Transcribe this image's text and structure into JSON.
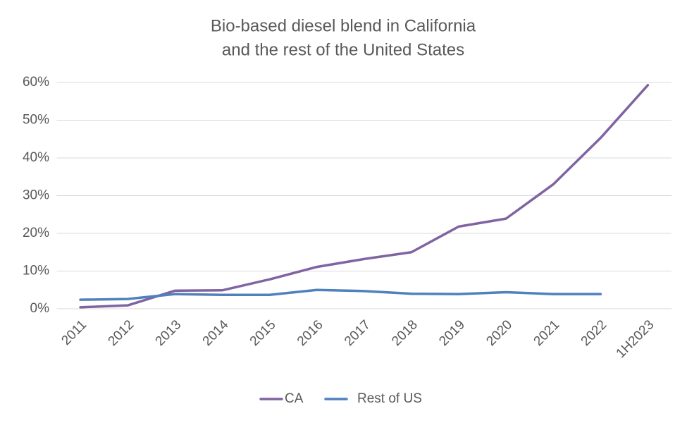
{
  "chart_data": {
    "type": "line",
    "title": [
      "Bio-based diesel blend in California",
      "and the rest of the United States"
    ],
    "categories": [
      "2011",
      "2012",
      "2013",
      "2014",
      "2015",
      "2016",
      "2017",
      "2018",
      "2019",
      "2020",
      "2021",
      "2022",
      "1H2023"
    ],
    "series": [
      {
        "name": "CA",
        "color": "#8064a2",
        "values": [
          0.4,
          0.9,
          4.8,
          4.9,
          7.8,
          11.1,
          13.2,
          15.0,
          21.8,
          23.9,
          33.0,
          45.3,
          59.3
        ]
      },
      {
        "name": "Rest of US",
        "color": "#4f81bd",
        "values": [
          2.4,
          2.6,
          3.9,
          3.7,
          3.7,
          5.0,
          4.7,
          4.0,
          3.9,
          4.4,
          3.9,
          3.9,
          null
        ]
      }
    ],
    "ylim": [
      0,
      60
    ],
    "yticks": [
      {
        "value": 0,
        "label": "0%"
      },
      {
        "value": 10,
        "label": "10%"
      },
      {
        "value": 20,
        "label": "20%"
      },
      {
        "value": 30,
        "label": "30%"
      },
      {
        "value": 40,
        "label": "40%"
      },
      {
        "value": 50,
        "label": "50%"
      },
      {
        "value": 60,
        "label": "60%"
      }
    ],
    "grid": true,
    "legend": "bottom"
  }
}
